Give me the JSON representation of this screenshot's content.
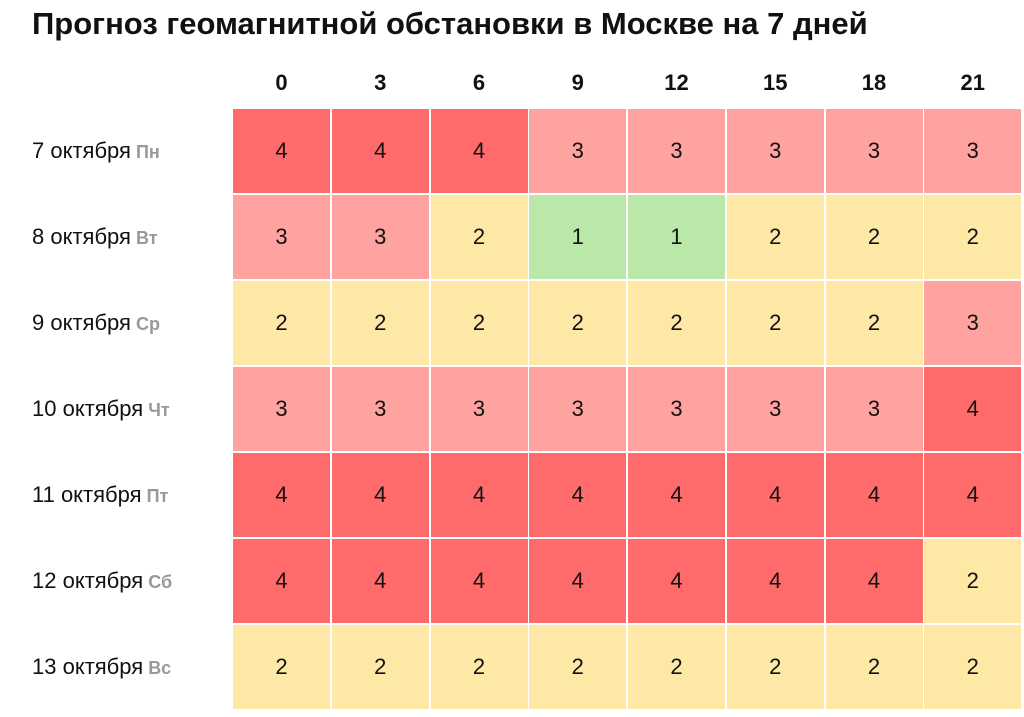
{
  "title": "Прогноз геомагнитной обстановки в Москве на 7 дней",
  "table": {
    "columns": [
      0,
      3,
      6,
      9,
      12,
      15,
      18,
      21
    ],
    "rows": [
      {
        "date": "7 октября",
        "weekday": "Пн",
        "values": [
          4,
          4,
          4,
          3,
          3,
          3,
          3,
          3
        ]
      },
      {
        "date": "8 октября",
        "weekday": "Вт",
        "values": [
          3,
          3,
          2,
          1,
          1,
          2,
          2,
          2
        ]
      },
      {
        "date": "9 октября",
        "weekday": "Ср",
        "values": [
          2,
          2,
          2,
          2,
          2,
          2,
          2,
          3
        ]
      },
      {
        "date": "10 октября",
        "weekday": "Чт",
        "values": [
          3,
          3,
          3,
          3,
          3,
          3,
          3,
          4
        ]
      },
      {
        "date": "11 октября",
        "weekday": "Пт",
        "values": [
          4,
          4,
          4,
          4,
          4,
          4,
          4,
          4
        ]
      },
      {
        "date": "12 октября",
        "weekday": "Сб",
        "values": [
          4,
          4,
          4,
          4,
          4,
          4,
          4,
          2
        ]
      },
      {
        "date": "13 октября",
        "weekday": "Вс",
        "values": [
          2,
          2,
          2,
          2,
          2,
          2,
          2,
          2
        ]
      }
    ]
  },
  "colors": {
    "1": "#b9e8a8",
    "2": "#fde8a6",
    "3": "#ffa3a1",
    "4": "#ff6b6b"
  }
}
